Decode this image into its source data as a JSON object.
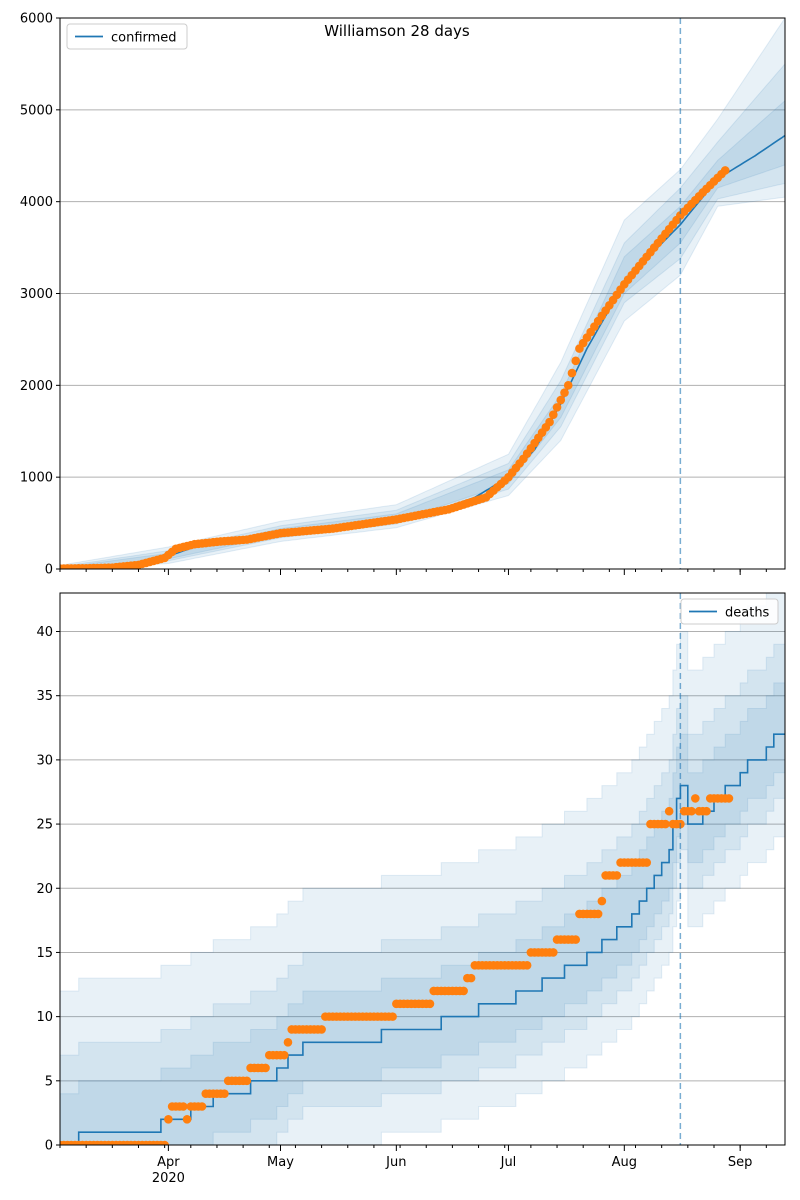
{
  "title": "Williamson 28 days",
  "colors": {
    "model": "#1f77b4",
    "observed": "#ff7f0e",
    "band": "#1f77b4",
    "grid": "#b0b0b0",
    "forecast_line": "#1f77b4"
  },
  "x_axis": {
    "start": "2020-03-03",
    "end": "2020-09-13",
    "month_ticks": [
      {
        "date": "2020-04-01",
        "label": "Apr",
        "sublabel": "2020"
      },
      {
        "date": "2020-05-01",
        "label": "May",
        "sublabel": ""
      },
      {
        "date": "2020-06-01",
        "label": "Jun",
        "sublabel": ""
      },
      {
        "date": "2020-07-01",
        "label": "Jul",
        "sublabel": ""
      },
      {
        "date": "2020-08-01",
        "label": "Aug",
        "sublabel": ""
      },
      {
        "date": "2020-09-01",
        "label": "Sep",
        "sublabel": ""
      }
    ],
    "minor_tick_interval_days": 7,
    "forecast_date": "2020-08-16"
  },
  "chart_data": [
    {
      "type": "line",
      "legend": {
        "label": "confirmed",
        "position": "top-left"
      },
      "ylim": [
        0,
        6000
      ],
      "yticks": [
        0,
        1000,
        2000,
        3000,
        4000,
        5000,
        6000
      ],
      "grid": "horizontal",
      "model_curve": [
        [
          "2020-03-03",
          0
        ],
        [
          "2020-03-15",
          15
        ],
        [
          "2020-03-25",
          50
        ],
        [
          "2020-04-01",
          140
        ],
        [
          "2020-04-08",
          240
        ],
        [
          "2020-04-15",
          300
        ],
        [
          "2020-04-22",
          330
        ],
        [
          "2020-05-01",
          400
        ],
        [
          "2020-05-15",
          460
        ],
        [
          "2020-06-01",
          560
        ],
        [
          "2020-06-15",
          680
        ],
        [
          "2020-06-22",
          780
        ],
        [
          "2020-07-01",
          1000
        ],
        [
          "2020-07-08",
          1300
        ],
        [
          "2020-07-15",
          1800
        ],
        [
          "2020-07-22",
          2400
        ],
        [
          "2020-07-29",
          2900
        ],
        [
          "2020-08-05",
          3300
        ],
        [
          "2020-08-16",
          3750
        ],
        [
          "2020-08-26",
          4250
        ],
        [
          "2020-09-05",
          4500
        ],
        [
          "2020-09-13",
          4720
        ]
      ],
      "bands": [
        {
          "lower": [
            [
              "2020-03-03",
              0
            ],
            [
              "2020-04-01",
              60
            ],
            [
              "2020-05-01",
              300
            ],
            [
              "2020-06-01",
              450
            ],
            [
              "2020-07-01",
              800
            ],
            [
              "2020-07-15",
              1400
            ],
            [
              "2020-08-01",
              2700
            ],
            [
              "2020-08-16",
              3200
            ],
            [
              "2020-08-26",
              3950
            ],
            [
              "2020-09-13",
              4050
            ]
          ],
          "upper": [
            [
              "2020-03-03",
              40
            ],
            [
              "2020-04-01",
              240
            ],
            [
              "2020-05-01",
              520
            ],
            [
              "2020-06-01",
              700
            ],
            [
              "2020-07-01",
              1250
            ],
            [
              "2020-07-15",
              2250
            ],
            [
              "2020-08-01",
              3800
            ],
            [
              "2020-08-16",
              4350
            ],
            [
              "2020-08-26",
              4900
            ],
            [
              "2020-09-13",
              6000
            ]
          ]
        },
        {
          "lower": [
            [
              "2020-03-03",
              0
            ],
            [
              "2020-04-01",
              90
            ],
            [
              "2020-05-01",
              340
            ],
            [
              "2020-06-01",
              490
            ],
            [
              "2020-07-01",
              870
            ],
            [
              "2020-07-15",
              1550
            ],
            [
              "2020-08-01",
              2900
            ],
            [
              "2020-08-16",
              3380
            ],
            [
              "2020-08-26",
              4030
            ],
            [
              "2020-09-13",
              4200
            ]
          ],
          "upper": [
            [
              "2020-03-03",
              25
            ],
            [
              "2020-04-01",
              200
            ],
            [
              "2020-05-01",
              470
            ],
            [
              "2020-06-01",
              640
            ],
            [
              "2020-07-01",
              1150
            ],
            [
              "2020-07-15",
              2050
            ],
            [
              "2020-08-01",
              3550
            ],
            [
              "2020-08-16",
              4150
            ],
            [
              "2020-08-26",
              4650
            ],
            [
              "2020-09-13",
              5500
            ]
          ]
        },
        {
          "lower": [
            [
              "2020-03-03",
              0
            ],
            [
              "2020-04-01",
              110
            ],
            [
              "2020-05-01",
              370
            ],
            [
              "2020-06-01",
              520
            ],
            [
              "2020-07-01",
              930
            ],
            [
              "2020-07-15",
              1650
            ],
            [
              "2020-08-01",
              3000
            ],
            [
              "2020-08-16",
              3550
            ],
            [
              "2020-08-26",
              4150
            ],
            [
              "2020-09-13",
              4400
            ]
          ],
          "upper": [
            [
              "2020-03-03",
              15
            ],
            [
              "2020-04-01",
              170
            ],
            [
              "2020-05-01",
              440
            ],
            [
              "2020-06-01",
              600
            ],
            [
              "2020-07-01",
              1080
            ],
            [
              "2020-07-15",
              1900
            ],
            [
              "2020-08-01",
              3400
            ],
            [
              "2020-08-16",
              3950
            ],
            [
              "2020-08-26",
              4450
            ],
            [
              "2020-09-13",
              5100
            ]
          ]
        }
      ],
      "observed_keyframes": [
        [
          "2020-03-03",
          5
        ],
        [
          "2020-03-10",
          8
        ],
        [
          "2020-03-17",
          15
        ],
        [
          "2020-03-24",
          45
        ],
        [
          "2020-03-31",
          120
        ],
        [
          "2020-04-03",
          220
        ],
        [
          "2020-04-08",
          270
        ],
        [
          "2020-04-15",
          300
        ],
        [
          "2020-04-22",
          320
        ],
        [
          "2020-05-01",
          390
        ],
        [
          "2020-05-15",
          440
        ],
        [
          "2020-06-01",
          540
        ],
        [
          "2020-06-15",
          650
        ],
        [
          "2020-06-25",
          780
        ],
        [
          "2020-07-01",
          1000
        ],
        [
          "2020-07-05",
          1200
        ],
        [
          "2020-07-12",
          1600
        ],
        [
          "2020-07-17",
          2000
        ],
        [
          "2020-07-20",
          2400
        ],
        [
          "2020-07-25",
          2700
        ],
        [
          "2020-08-01",
          3100
        ],
        [
          "2020-08-08",
          3450
        ],
        [
          "2020-08-16",
          3850
        ],
        [
          "2020-08-22",
          4100
        ],
        [
          "2020-08-28",
          4340
        ]
      ]
    },
    {
      "type": "line",
      "legend": {
        "label": "deaths",
        "position": "top-right"
      },
      "ylim": [
        0,
        43
      ],
      "yticks": [
        0,
        5,
        10,
        15,
        20,
        25,
        30,
        35,
        40
      ],
      "grid": "horizontal",
      "model_steps": [
        [
          "2020-03-03",
          0
        ],
        [
          "2020-03-08",
          1
        ],
        [
          "2020-03-30",
          2
        ],
        [
          "2020-04-07",
          3
        ],
        [
          "2020-04-13",
          4
        ],
        [
          "2020-04-23",
          5
        ],
        [
          "2020-04-30",
          6
        ],
        [
          "2020-05-03",
          7
        ],
        [
          "2020-05-07",
          8
        ],
        [
          "2020-05-28",
          9
        ],
        [
          "2020-06-13",
          10
        ],
        [
          "2020-06-23",
          11
        ],
        [
          "2020-07-03",
          12
        ],
        [
          "2020-07-10",
          13
        ],
        [
          "2020-07-16",
          14
        ],
        [
          "2020-07-22",
          15
        ],
        [
          "2020-07-26",
          16
        ],
        [
          "2020-07-30",
          17
        ],
        [
          "2020-08-03",
          18
        ],
        [
          "2020-08-05",
          19
        ],
        [
          "2020-08-07",
          20
        ],
        [
          "2020-08-09",
          21
        ],
        [
          "2020-08-11",
          22
        ],
        [
          "2020-08-13",
          23
        ],
        [
          "2020-08-14",
          25
        ],
        [
          "2020-08-15",
          27
        ],
        [
          "2020-08-16",
          28
        ],
        [
          "2020-08-18",
          25
        ],
        [
          "2020-08-22",
          26
        ],
        [
          "2020-08-25",
          27
        ],
        [
          "2020-08-28",
          28
        ],
        [
          "2020-09-01",
          29
        ],
        [
          "2020-09-03",
          30
        ],
        [
          "2020-09-08",
          31
        ],
        [
          "2020-09-10",
          32
        ],
        [
          "2020-09-13",
          32
        ]
      ],
      "step_bands": [
        {
          "offset_low": -8,
          "offset_high": 12
        },
        {
          "offset_low": -5,
          "offset_high": 7
        },
        {
          "offset_low": -3,
          "offset_high": 4
        }
      ],
      "observed_steps": [
        [
          "2020-03-03",
          0
        ],
        [
          "2020-04-01",
          2
        ],
        [
          "2020-04-02",
          3
        ],
        [
          "2020-04-06",
          2
        ],
        [
          "2020-04-07",
          3
        ],
        [
          "2020-04-11",
          4
        ],
        [
          "2020-04-17",
          5
        ],
        [
          "2020-04-23",
          6
        ],
        [
          "2020-04-28",
          7
        ],
        [
          "2020-05-03",
          8
        ],
        [
          "2020-05-04",
          9
        ],
        [
          "2020-05-13",
          10
        ],
        [
          "2020-06-01",
          11
        ],
        [
          "2020-06-11",
          12
        ],
        [
          "2020-06-20",
          13
        ],
        [
          "2020-06-22",
          14
        ],
        [
          "2020-07-07",
          15
        ],
        [
          "2020-07-14",
          16
        ],
        [
          "2020-07-20",
          18
        ],
        [
          "2020-07-26",
          19
        ],
        [
          "2020-07-27",
          21
        ],
        [
          "2020-07-31",
          22
        ],
        [
          "2020-08-08",
          25
        ],
        [
          "2020-08-13",
          26
        ],
        [
          "2020-08-14",
          25
        ],
        [
          "2020-08-17",
          26
        ],
        [
          "2020-08-20",
          27
        ],
        [
          "2020-08-21",
          26
        ],
        [
          "2020-08-24",
          27
        ],
        [
          "2020-08-29",
          27
        ]
      ]
    }
  ]
}
